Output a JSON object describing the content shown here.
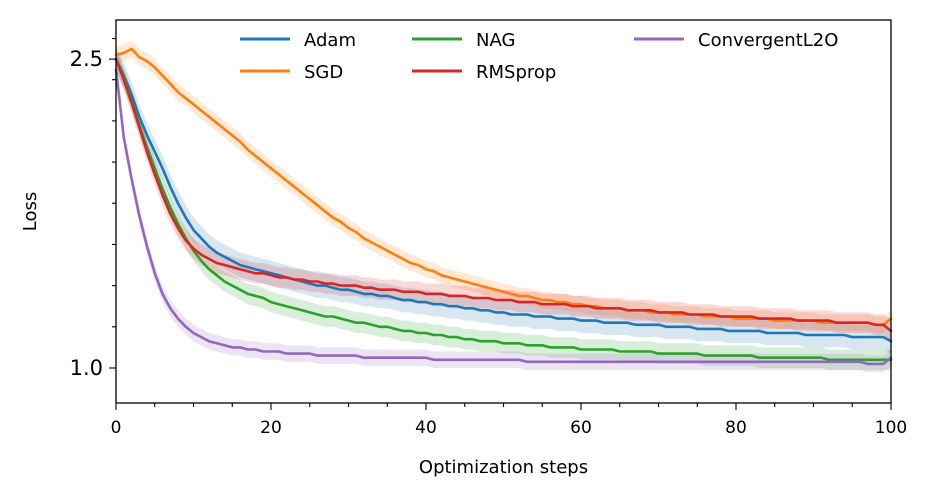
{
  "chart_data": {
    "type": "line",
    "title": "",
    "xlabel": "Optimization steps",
    "ylabel": "Loss",
    "xlim": [
      0,
      100
    ],
    "ylim": [
      0.83,
      2.69
    ],
    "xticks": [
      0,
      20,
      40,
      60,
      80,
      100
    ],
    "xtick_labels": [
      "0",
      "20",
      "40",
      "60",
      "80",
      "100"
    ],
    "yticks": [
      1.0,
      2.5
    ],
    "ytick_labels": [
      "1.0",
      "2.5"
    ],
    "grid": false,
    "legend_position": "top",
    "legend_columns": 3,
    "series": [
      {
        "name": "Adam",
        "color": "#1f77b4",
        "band": 0.06,
        "values": [
          2.5,
          2.42,
          2.33,
          2.22,
          2.13,
          2.05,
          1.97,
          1.88,
          1.8,
          1.73,
          1.67,
          1.63,
          1.59,
          1.56,
          1.54,
          1.52,
          1.5,
          1.49,
          1.48,
          1.47,
          1.46,
          1.45,
          1.44,
          1.43,
          1.42,
          1.41,
          1.4,
          1.4,
          1.39,
          1.38,
          1.38,
          1.37,
          1.36,
          1.36,
          1.35,
          1.35,
          1.34,
          1.33,
          1.33,
          1.32,
          1.32,
          1.31,
          1.31,
          1.3,
          1.3,
          1.29,
          1.29,
          1.28,
          1.28,
          1.27,
          1.27,
          1.26,
          1.26,
          1.26,
          1.25,
          1.25,
          1.25,
          1.24,
          1.24,
          1.24,
          1.23,
          1.23,
          1.23,
          1.22,
          1.22,
          1.22,
          1.22,
          1.21,
          1.21,
          1.21,
          1.21,
          1.2,
          1.2,
          1.2,
          1.2,
          1.19,
          1.19,
          1.19,
          1.19,
          1.18,
          1.18,
          1.18,
          1.18,
          1.18,
          1.17,
          1.17,
          1.17,
          1.17,
          1.17,
          1.16,
          1.16,
          1.16,
          1.16,
          1.16,
          1.16,
          1.15,
          1.15,
          1.15,
          1.15,
          1.15,
          1.13
        ]
      },
      {
        "name": "SGD",
        "color": "#ff7f0e",
        "band": 0.04,
        "values": [
          2.52,
          2.53,
          2.55,
          2.51,
          2.49,
          2.46,
          2.42,
          2.38,
          2.34,
          2.31,
          2.28,
          2.25,
          2.22,
          2.19,
          2.16,
          2.13,
          2.1,
          2.06,
          2.03,
          2.0,
          1.97,
          1.94,
          1.91,
          1.88,
          1.85,
          1.82,
          1.79,
          1.76,
          1.73,
          1.71,
          1.68,
          1.66,
          1.63,
          1.61,
          1.59,
          1.57,
          1.55,
          1.53,
          1.51,
          1.5,
          1.48,
          1.47,
          1.45,
          1.44,
          1.43,
          1.42,
          1.41,
          1.4,
          1.39,
          1.38,
          1.37,
          1.36,
          1.35,
          1.35,
          1.34,
          1.33,
          1.33,
          1.32,
          1.32,
          1.31,
          1.31,
          1.3,
          1.3,
          1.29,
          1.29,
          1.29,
          1.28,
          1.28,
          1.28,
          1.27,
          1.27,
          1.27,
          1.26,
          1.26,
          1.26,
          1.26,
          1.25,
          1.25,
          1.25,
          1.25,
          1.24,
          1.24,
          1.24,
          1.24,
          1.24,
          1.23,
          1.23,
          1.23,
          1.23,
          1.23,
          1.23,
          1.22,
          1.22,
          1.22,
          1.22,
          1.22,
          1.22,
          1.22,
          1.21,
          1.21,
          1.24
        ]
      },
      {
        "name": "NAG",
        "color": "#2ca02c",
        "band": 0.05,
        "values": [
          2.5,
          2.41,
          2.3,
          2.18,
          2.07,
          1.97,
          1.87,
          1.78,
          1.7,
          1.63,
          1.57,
          1.52,
          1.48,
          1.45,
          1.42,
          1.4,
          1.38,
          1.36,
          1.35,
          1.34,
          1.32,
          1.31,
          1.3,
          1.29,
          1.28,
          1.27,
          1.26,
          1.25,
          1.25,
          1.24,
          1.23,
          1.22,
          1.22,
          1.21,
          1.2,
          1.2,
          1.19,
          1.18,
          1.18,
          1.17,
          1.17,
          1.16,
          1.16,
          1.15,
          1.15,
          1.14,
          1.14,
          1.13,
          1.13,
          1.13,
          1.12,
          1.12,
          1.12,
          1.11,
          1.11,
          1.11,
          1.1,
          1.1,
          1.1,
          1.1,
          1.09,
          1.09,
          1.09,
          1.09,
          1.09,
          1.08,
          1.08,
          1.08,
          1.08,
          1.08,
          1.07,
          1.07,
          1.07,
          1.07,
          1.07,
          1.07,
          1.06,
          1.06,
          1.06,
          1.06,
          1.06,
          1.06,
          1.06,
          1.05,
          1.05,
          1.05,
          1.05,
          1.05,
          1.05,
          1.05,
          1.05,
          1.05,
          1.04,
          1.04,
          1.04,
          1.04,
          1.04,
          1.04,
          1.04,
          1.04,
          1.04
        ]
      },
      {
        "name": "RMSprop",
        "color": "#d62728",
        "band": 0.05,
        "values": [
          2.5,
          2.4,
          2.29,
          2.17,
          2.05,
          1.94,
          1.84,
          1.75,
          1.68,
          1.62,
          1.58,
          1.55,
          1.53,
          1.51,
          1.5,
          1.49,
          1.48,
          1.47,
          1.46,
          1.46,
          1.45,
          1.44,
          1.44,
          1.43,
          1.43,
          1.42,
          1.42,
          1.41,
          1.41,
          1.4,
          1.4,
          1.4,
          1.39,
          1.39,
          1.38,
          1.38,
          1.38,
          1.37,
          1.37,
          1.37,
          1.36,
          1.36,
          1.36,
          1.35,
          1.35,
          1.35,
          1.34,
          1.34,
          1.34,
          1.33,
          1.33,
          1.33,
          1.32,
          1.32,
          1.32,
          1.31,
          1.31,
          1.31,
          1.31,
          1.3,
          1.3,
          1.3,
          1.29,
          1.29,
          1.29,
          1.29,
          1.28,
          1.28,
          1.28,
          1.28,
          1.27,
          1.27,
          1.27,
          1.27,
          1.26,
          1.26,
          1.26,
          1.26,
          1.25,
          1.25,
          1.25,
          1.25,
          1.25,
          1.24,
          1.24,
          1.24,
          1.24,
          1.24,
          1.23,
          1.23,
          1.23,
          1.23,
          1.23,
          1.22,
          1.22,
          1.22,
          1.22,
          1.22,
          1.21,
          1.21,
          1.18
        ]
      },
      {
        "name": "ConvergentL2O",
        "color": "#9467bd",
        "band": 0.04,
        "values": [
          2.45,
          2.12,
          1.92,
          1.74,
          1.59,
          1.46,
          1.36,
          1.29,
          1.24,
          1.2,
          1.17,
          1.15,
          1.13,
          1.12,
          1.11,
          1.1,
          1.1,
          1.09,
          1.09,
          1.08,
          1.08,
          1.08,
          1.07,
          1.07,
          1.07,
          1.07,
          1.06,
          1.06,
          1.06,
          1.06,
          1.06,
          1.06,
          1.05,
          1.05,
          1.05,
          1.05,
          1.05,
          1.05,
          1.05,
          1.05,
          1.05,
          1.04,
          1.04,
          1.04,
          1.04,
          1.04,
          1.04,
          1.04,
          1.04,
          1.04,
          1.04,
          1.04,
          1.04,
          1.03,
          1.03,
          1.03,
          1.03,
          1.03,
          1.03,
          1.03,
          1.03,
          1.03,
          1.03,
          1.03,
          1.03,
          1.03,
          1.03,
          1.03,
          1.03,
          1.03,
          1.03,
          1.03,
          1.03,
          1.03,
          1.03,
          1.03,
          1.03,
          1.03,
          1.03,
          1.03,
          1.03,
          1.03,
          1.03,
          1.03,
          1.03,
          1.03,
          1.03,
          1.03,
          1.03,
          1.03,
          1.03,
          1.03,
          1.03,
          1.03,
          1.03,
          1.03,
          1.03,
          1.02,
          1.02,
          1.02,
          1.05
        ]
      }
    ]
  }
}
